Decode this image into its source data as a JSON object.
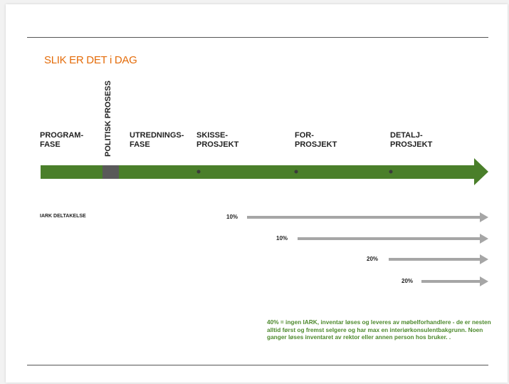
{
  "slide": {
    "title": "SLIK ER DET i DAG",
    "colors": {
      "title": "#e46c0a",
      "timeline": "#4a7f2a",
      "arrows": "#a6a6a6",
      "note": "#4e8a2e"
    }
  },
  "phases": [
    {
      "label": "PROGRAM-\nFASE"
    },
    {
      "label": "POLITISK PROSESS"
    },
    {
      "label": "UTREDNINGS-\nFASE"
    },
    {
      "label": "SKISSE-\nPROSJEKT"
    },
    {
      "label": "FOR-\nPROSJEKT"
    },
    {
      "label": "DETALJ-\nPROSJEKT"
    }
  ],
  "participation": {
    "label": "IARK DELTAKELSE",
    "rows": [
      {
        "percent": "10%"
      },
      {
        "percent": "10%"
      },
      {
        "percent": "20%"
      },
      {
        "percent": "20%"
      }
    ]
  },
  "note": "40% = ingen IARK, inventar løses og leveres av møbelforhandlere - de er nesten alltid først og fremst selgere og har max en interiørkonsulentbakgrunn. Noen ganger løses inventaret av rektor eller annen person hos bruker. ."
}
